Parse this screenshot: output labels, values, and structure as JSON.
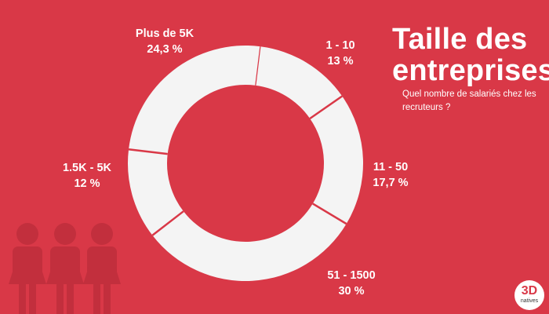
{
  "title": [
    "Taille des",
    "entreprises"
  ],
  "subtitle": "Quel nombre de salariés chez les recruteurs ?",
  "logo": {
    "main": "3D",
    "sub": "natives"
  },
  "icons": [
    "person-icon",
    "person-icon",
    "person-icon"
  ],
  "colors": {
    "background": "#d93847",
    "donut": "#f4f4f4",
    "icon": "#c22f3d",
    "text": "#ffffff"
  },
  "chart_data": {
    "type": "pie",
    "donut": true,
    "slices": [
      {
        "category": "1 - 10",
        "value_label": "13 %",
        "value": 13
      },
      {
        "category": "11 - 50",
        "value_label": "17,7 %",
        "value": 17.7
      },
      {
        "category": "51 - 1500",
        "value_label": "30 %",
        "value": 30
      },
      {
        "category": "1.5K - 5K",
        "value_label": "12 %",
        "value": 12
      },
      {
        "category": "Plus de 5K",
        "value_label": "24,3 %",
        "value": 24.3
      }
    ]
  }
}
